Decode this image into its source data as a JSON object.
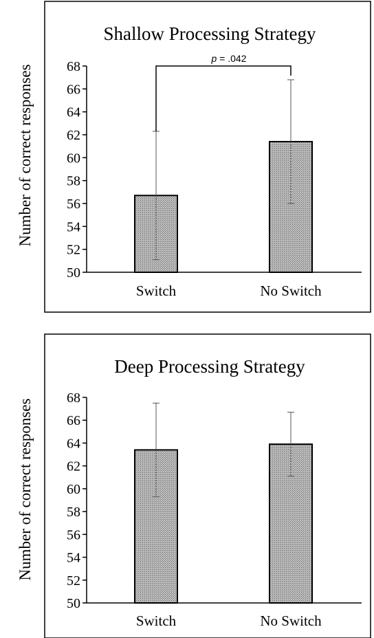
{
  "chart_data": [
    {
      "type": "bar",
      "title": "Shallow Processing Strategy",
      "ylabel": "Number of correct responses",
      "xlabel": "",
      "categories": [
        "Switch",
        "No Switch"
      ],
      "values": [
        56.7,
        61.4
      ],
      "error": [
        5.6,
        5.4
      ],
      "ylim": [
        50,
        68
      ],
      "yticks": [
        "50",
        "52",
        "54",
        "56",
        "58",
        "60",
        "62",
        "64",
        "66",
        "68"
      ],
      "bar_color": "#a6a6a6",
      "annotation": {
        "italic": "p",
        "text": " = .042"
      }
    },
    {
      "type": "bar",
      "title": "Deep Processing Strategy",
      "ylabel": "Number of correct responses",
      "xlabel": "",
      "categories": [
        "Switch",
        "No Switch"
      ],
      "values": [
        63.4,
        63.9
      ],
      "error": [
        4.1,
        2.8
      ],
      "ylim": [
        50,
        68
      ],
      "yticks": [
        "50",
        "52",
        "54",
        "56",
        "58",
        "60",
        "62",
        "64",
        "66",
        "68"
      ],
      "bar_color": "#a6a6a6"
    }
  ]
}
